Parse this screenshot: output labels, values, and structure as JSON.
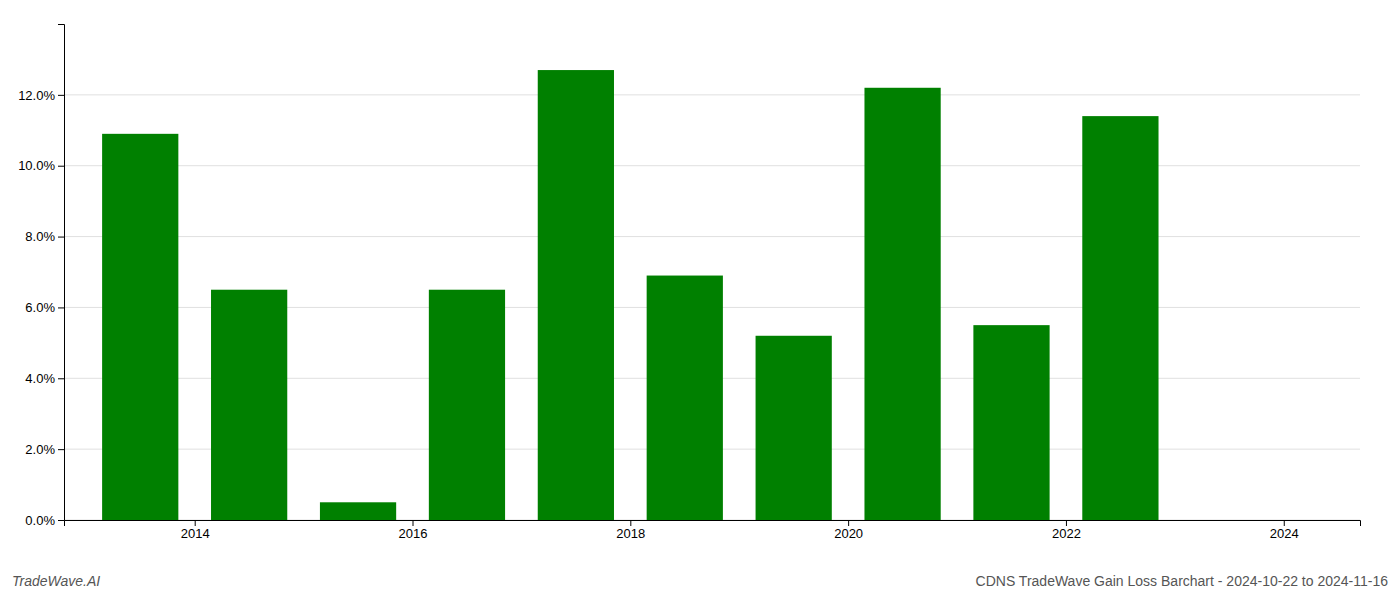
{
  "chart_data": {
    "type": "bar",
    "title": "CDNS TradeWave Gain Loss Barchart - 2024-10-22 to 2024-11-16",
    "annotations": [
      "TradeWave.AI"
    ],
    "x": [
      2014,
      2015,
      2016,
      2017,
      2018,
      2019,
      2020,
      2021,
      2022,
      2023
    ],
    "values": [
      0.109,
      0.065,
      0.005,
      0.065,
      0.127,
      0.069,
      0.052,
      0.122,
      0.055,
      0.114
    ],
    "color": "#008000",
    "xlim": [
      2013.3,
      2025.2
    ],
    "xticks": [
      {
        "value": 2014.5,
        "label": "2014"
      },
      {
        "value": 2016.5,
        "label": "2016"
      },
      {
        "value": 2018.5,
        "label": "2018"
      },
      {
        "value": 2020.5,
        "label": "2020"
      },
      {
        "value": 2022.5,
        "label": "2022"
      },
      {
        "value": 2024.5,
        "label": "2024"
      }
    ],
    "ylim": [
      0,
      0.14
    ],
    "yticks": [
      {
        "value": 0.0,
        "label": "0.0%"
      },
      {
        "value": 0.02,
        "label": "2.0%"
      },
      {
        "value": 0.04,
        "label": "4.0%"
      },
      {
        "value": 0.06,
        "label": "6.0%"
      },
      {
        "value": 0.08,
        "label": "8.0%"
      },
      {
        "value": 0.1,
        "label": "10.0%"
      },
      {
        "value": 0.12,
        "label": "12.0%"
      }
    ],
    "grid": true
  }
}
